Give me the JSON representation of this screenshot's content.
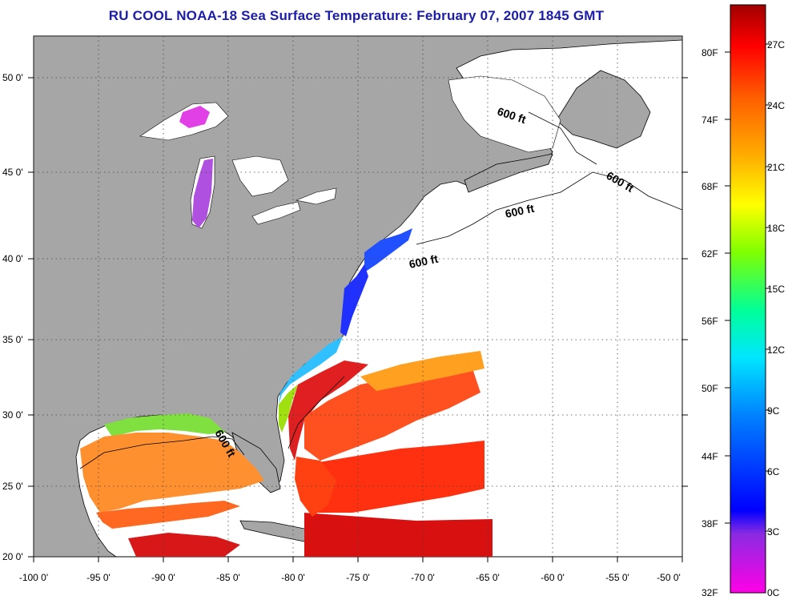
{
  "title": "RU COOL  NOAA-18  Sea Surface Temperature:  February 07, 2007 1845 GMT",
  "map": {
    "lon_labels": [
      "-100 0'",
      "-95 0'",
      "-90 0'",
      "-85 0'",
      "-80 0'",
      "-75 0'",
      "-70 0'",
      "-65 0'",
      "-60 0'",
      "-55 0'",
      "-50 0'"
    ],
    "lat_labels": [
      "50 0'",
      "45 0'",
      "40 0'",
      "35 0'",
      "30 0'",
      "25 0'",
      "20 0'"
    ],
    "depth_contour_label": "600 ft",
    "colors": {
      "land": "#a6a6a6",
      "ocean_no_data": "#ffffff",
      "title": "#1c1caa"
    }
  },
  "colorbar": {
    "fahrenheit_labels": [
      "80F",
      "74F",
      "68F",
      "62F",
      "56F",
      "50F",
      "44F",
      "38F",
      "32F"
    ],
    "celsius_labels": [
      "27C",
      "24C",
      "21C",
      "18C",
      "15C",
      "12C",
      "9C",
      "6C",
      "3C",
      "0C"
    ],
    "gradient_stops": [
      "#ff00e6",
      "#8a2be2",
      "#0000ff",
      "#0080ff",
      "#00e6ff",
      "#00ff99",
      "#80ff00",
      "#ffff00",
      "#ffb000",
      "#ff6000",
      "#ff0000",
      "#a00000"
    ]
  }
}
